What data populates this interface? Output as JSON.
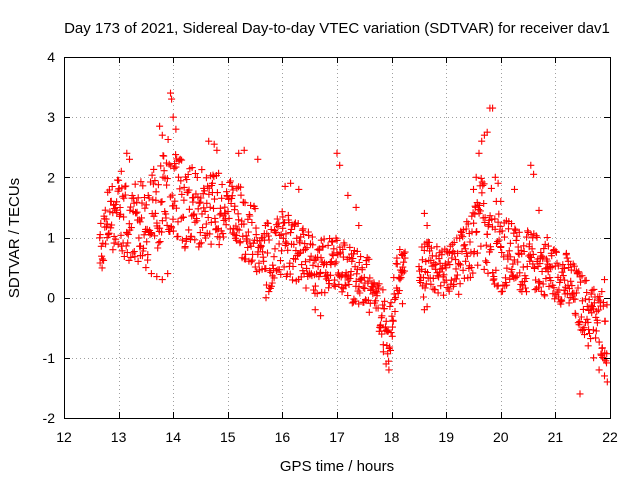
{
  "chart_data": {
    "type": "scatter",
    "title": "Day 173 of 2021, Sidereal Day-to-day VTEC variation (SDTVAR) for receiver dav1",
    "xlabel": "GPS time / hours",
    "ylabel": "SDTVAR / TECUs",
    "xlim": [
      12,
      22
    ],
    "ylim": [
      -2,
      4
    ],
    "xticks": [
      12,
      13,
      14,
      15,
      16,
      17,
      18,
      19,
      20,
      21,
      22
    ],
    "yticks": [
      -2,
      -1,
      0,
      1,
      2,
      3,
      4
    ],
    "xtick_labels": [
      "12",
      "13",
      "14",
      "15",
      "16",
      "17",
      "18",
      "19",
      "20",
      "21",
      "22"
    ],
    "ytick_labels": [
      "-2",
      "-1",
      "0",
      "1",
      "2",
      "3",
      "4"
    ],
    "grid": true,
    "marker": "+",
    "color": "#ff0000",
    "series": [
      {
        "name": "SDTVAR",
        "segments": [
          {
            "x_start": 12.65,
            "x_end": 18.25,
            "step": 0.008,
            "center": [
              [
                12.65,
                0.8
              ],
              [
                12.8,
                1.3
              ],
              [
                13.0,
                1.4
              ],
              [
                13.2,
                1.2
              ],
              [
                13.5,
                1.3
              ],
              [
                13.7,
                1.5
              ],
              [
                13.9,
                1.9
              ],
              [
                14.1,
                1.6
              ],
              [
                14.3,
                1.5
              ],
              [
                14.5,
                1.5
              ],
              [
                14.7,
                1.5
              ],
              [
                15.0,
                1.4
              ],
              [
                15.2,
                1.3
              ],
              [
                15.4,
                1.1
              ],
              [
                15.6,
                0.9
              ],
              [
                15.8,
                0.6
              ],
              [
                16.0,
                0.9
              ],
              [
                16.2,
                0.8
              ],
              [
                16.4,
                0.7
              ],
              [
                16.6,
                0.5
              ],
              [
                16.8,
                0.5
              ],
              [
                17.0,
                0.6
              ],
              [
                17.2,
                0.4
              ],
              [
                17.4,
                0.3
              ],
              [
                17.6,
                0.2
              ],
              [
                17.8,
                -0.2
              ],
              [
                17.95,
                -0.6
              ],
              [
                18.1,
                0.3
              ],
              [
                18.25,
                0.6
              ]
            ],
            "spread": [
              [
                12.65,
                0.45
              ],
              [
                13.0,
                0.6
              ],
              [
                13.5,
                0.7
              ],
              [
                14.0,
                0.8
              ],
              [
                14.5,
                0.65
              ],
              [
                15.0,
                0.6
              ],
              [
                15.5,
                0.55
              ],
              [
                16.0,
                0.55
              ],
              [
                16.5,
                0.5
              ],
              [
                17.0,
                0.5
              ],
              [
                17.5,
                0.45
              ],
              [
                17.9,
                0.5
              ],
              [
                18.25,
                0.3
              ]
            ]
          },
          {
            "x_start": 18.5,
            "x_end": 21.95,
            "step": 0.008,
            "center": [
              [
                18.5,
                0.4
              ],
              [
                18.7,
                0.5
              ],
              [
                18.9,
                0.4
              ],
              [
                19.1,
                0.5
              ],
              [
                19.3,
                0.6
              ],
              [
                19.5,
                0.9
              ],
              [
                19.65,
                1.3
              ],
              [
                19.8,
                1.2
              ],
              [
                20.0,
                0.8
              ],
              [
                20.2,
                0.7
              ],
              [
                20.4,
                0.6
              ],
              [
                20.6,
                0.6
              ],
              [
                20.8,
                0.5
              ],
              [
                21.0,
                0.4
              ],
              [
                21.2,
                0.3
              ],
              [
                21.4,
                0.0
              ],
              [
                21.6,
                -0.2
              ],
              [
                21.8,
                -0.4
              ],
              [
                21.95,
                -0.6
              ]
            ],
            "spread": [
              [
                18.5,
                0.45
              ],
              [
                19.0,
                0.45
              ],
              [
                19.5,
                0.6
              ],
              [
                19.8,
                0.9
              ],
              [
                20.2,
                0.55
              ],
              [
                20.6,
                0.5
              ],
              [
                21.0,
                0.45
              ],
              [
                21.5,
                0.5
              ],
              [
                21.95,
                0.55
              ]
            ]
          }
        ],
        "extra_points": [
          [
            13.0,
            1.95
          ],
          [
            13.05,
            2.1
          ],
          [
            13.15,
            2.4
          ],
          [
            13.2,
            2.3
          ],
          [
            13.4,
            0.7
          ],
          [
            13.5,
            0.5
          ],
          [
            13.6,
            0.4
          ],
          [
            13.7,
            0.35
          ],
          [
            13.8,
            0.3
          ],
          [
            13.9,
            0.4
          ],
          [
            13.75,
            2.85
          ],
          [
            13.8,
            2.7
          ],
          [
            13.95,
            3.4
          ],
          [
            13.97,
            3.3
          ],
          [
            14.0,
            3.0
          ],
          [
            14.05,
            2.8
          ],
          [
            14.65,
            2.6
          ],
          [
            14.75,
            2.55
          ],
          [
            14.8,
            2.45
          ],
          [
            15.2,
            2.4
          ],
          [
            15.3,
            2.45
          ],
          [
            15.55,
            2.3
          ],
          [
            15.7,
            0.0
          ],
          [
            15.75,
            0.1
          ],
          [
            16.05,
            1.85
          ],
          [
            16.15,
            1.9
          ],
          [
            16.3,
            1.8
          ],
          [
            16.6,
            -0.2
          ],
          [
            16.7,
            -0.3
          ],
          [
            17.0,
            2.4
          ],
          [
            17.05,
            2.2
          ],
          [
            17.2,
            1.7
          ],
          [
            17.35,
            1.5
          ],
          [
            17.4,
            1.2
          ],
          [
            17.8,
            -0.5
          ],
          [
            17.85,
            -0.9
          ],
          [
            17.9,
            -1.1
          ],
          [
            17.95,
            -1.2
          ],
          [
            18.15,
            0.8
          ],
          [
            18.2,
            0.7
          ],
          [
            18.2,
            -0.1
          ],
          [
            18.6,
            1.4
          ],
          [
            18.65,
            1.2
          ],
          [
            18.6,
            -0.2
          ],
          [
            18.65,
            -0.15
          ],
          [
            19.5,
            1.8
          ],
          [
            19.55,
            2.0
          ],
          [
            19.6,
            2.4
          ],
          [
            19.65,
            2.6
          ],
          [
            19.7,
            2.7
          ],
          [
            19.75,
            2.75
          ],
          [
            19.8,
            3.15
          ],
          [
            19.85,
            3.15
          ],
          [
            19.9,
            2.0
          ],
          [
            19.95,
            1.9
          ],
          [
            20.0,
            1.6
          ],
          [
            20.25,
            1.8
          ],
          [
            20.55,
            2.2
          ],
          [
            20.6,
            2.05
          ],
          [
            20.7,
            1.45
          ],
          [
            20.85,
            1.0
          ],
          [
            21.45,
            -1.6
          ],
          [
            21.6,
            -0.8
          ],
          [
            21.7,
            -1.0
          ],
          [
            21.8,
            -1.2
          ],
          [
            21.9,
            -1.3
          ],
          [
            21.95,
            -1.4
          ],
          [
            21.9,
            0.3
          ],
          [
            21.85,
            0.1
          ]
        ]
      }
    ]
  }
}
